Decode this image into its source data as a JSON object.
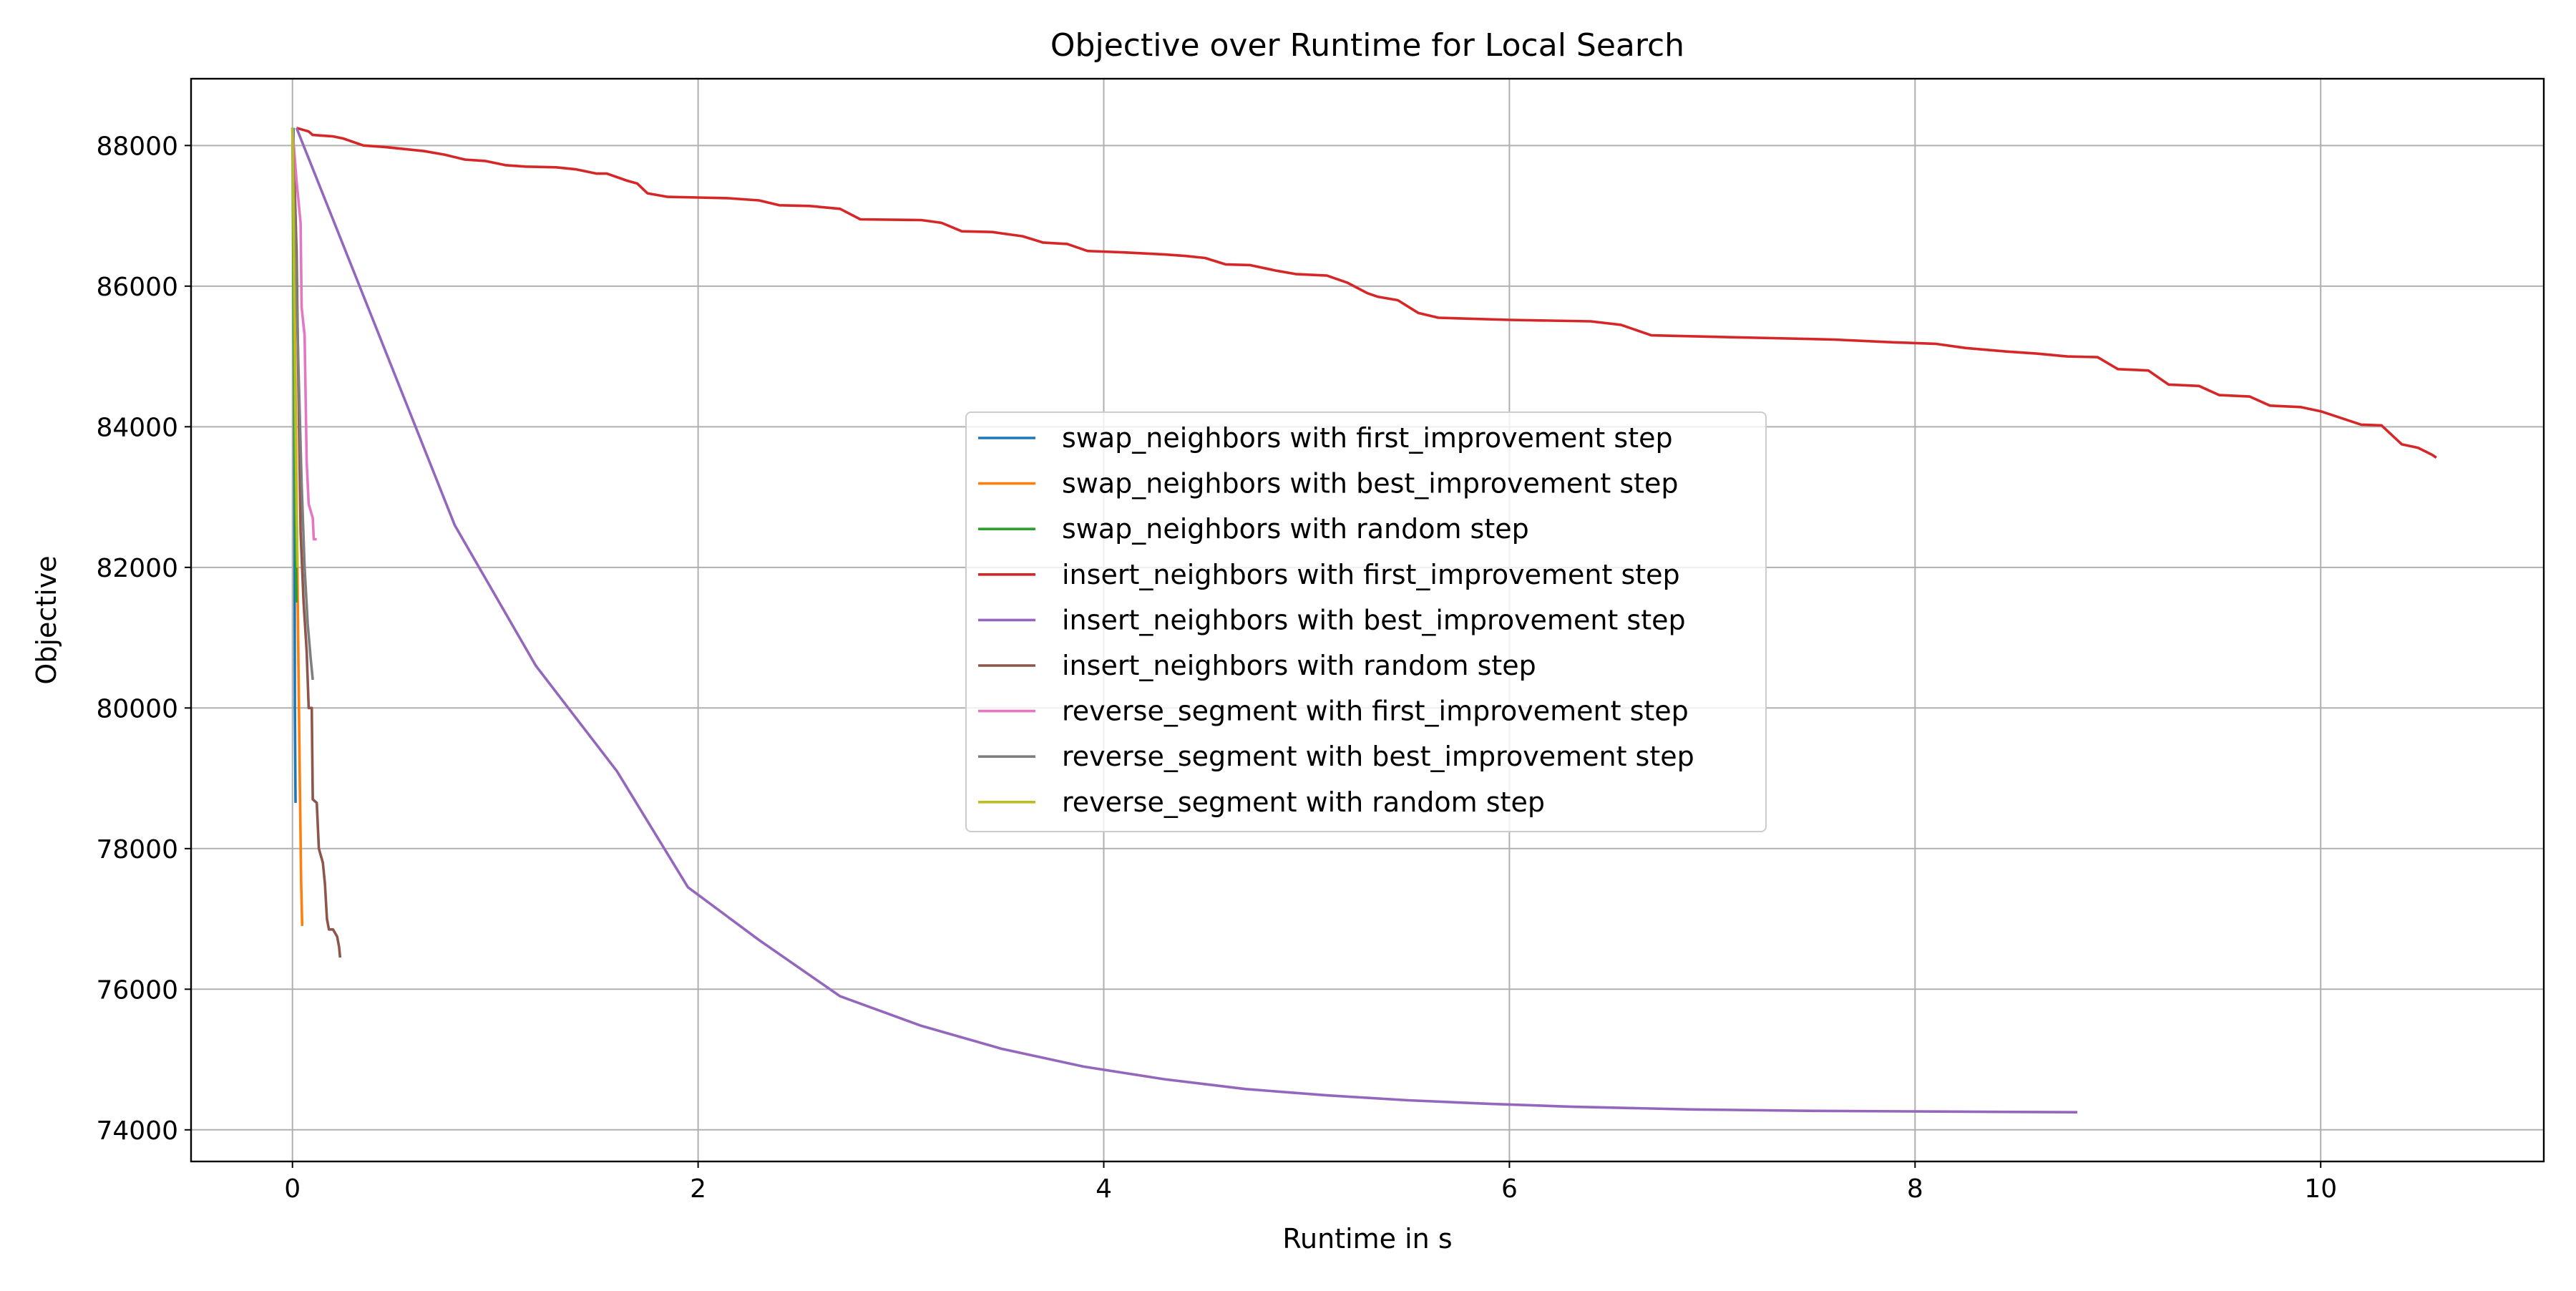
{
  "chart_data": {
    "type": "line",
    "title": "Objective over Runtime for Local Search",
    "xlabel": "Runtime in s",
    "ylabel": "Objective",
    "xlim": [
      -0.5,
      11.1
    ],
    "ylim": [
      73550,
      88950
    ],
    "xticks": [
      0,
      2,
      4,
      6,
      8,
      10
    ],
    "yticks": [
      74000,
      76000,
      78000,
      80000,
      82000,
      84000,
      86000,
      88000
    ],
    "grid": true,
    "legend_position": "center",
    "series": [
      {
        "name": "swap_neighbors with first_improvement step",
        "color": "#1f77b4",
        "points": [
          [
            0.005,
            88250
          ],
          [
            0.008,
            85500
          ],
          [
            0.01,
            82500
          ],
          [
            0.012,
            80000
          ],
          [
            0.015,
            78650
          ]
        ]
      },
      {
        "name": "swap_neighbors with best_improvement step",
        "color": "#ff7f0e",
        "points": [
          [
            0.0,
            88250
          ],
          [
            0.008,
            86500
          ],
          [
            0.015,
            84500
          ],
          [
            0.022,
            82500
          ],
          [
            0.03,
            80500
          ],
          [
            0.037,
            78800
          ],
          [
            0.043,
            77500
          ],
          [
            0.048,
            76900
          ]
        ]
      },
      {
        "name": "swap_neighbors with random step",
        "color": "#2ca02c",
        "points": [
          [
            0.0,
            88250
          ],
          [
            0.005,
            86000
          ],
          [
            0.01,
            84000
          ],
          [
            0.015,
            82500
          ],
          [
            0.02,
            81500
          ]
        ]
      },
      {
        "name": "insert_neighbors with first_improvement step",
        "color": "#d62728",
        "points": [
          [
            0.02,
            88250
          ],
          [
            0.08,
            88200
          ],
          [
            0.1,
            88150
          ],
          [
            0.2,
            88130
          ],
          [
            0.25,
            88100
          ],
          [
            0.3,
            88050
          ],
          [
            0.35,
            88000
          ],
          [
            0.45,
            87980
          ],
          [
            0.55,
            87950
          ],
          [
            0.65,
            87920
          ],
          [
            0.75,
            87870
          ],
          [
            0.85,
            87800
          ],
          [
            0.95,
            87780
          ],
          [
            1.05,
            87720
          ],
          [
            1.15,
            87700
          ],
          [
            1.3,
            87690
          ],
          [
            1.4,
            87660
          ],
          [
            1.5,
            87600
          ],
          [
            1.55,
            87600
          ],
          [
            1.65,
            87500
          ],
          [
            1.7,
            87460
          ],
          [
            1.75,
            87320
          ],
          [
            1.85,
            87270
          ],
          [
            2.0,
            87260
          ],
          [
            2.15,
            87250
          ],
          [
            2.3,
            87220
          ],
          [
            2.4,
            87150
          ],
          [
            2.55,
            87140
          ],
          [
            2.7,
            87100
          ],
          [
            2.8,
            86950
          ],
          [
            3.1,
            86940
          ],
          [
            3.2,
            86900
          ],
          [
            3.3,
            86780
          ],
          [
            3.45,
            86770
          ],
          [
            3.6,
            86710
          ],
          [
            3.7,
            86620
          ],
          [
            3.82,
            86600
          ],
          [
            3.92,
            86500
          ],
          [
            4.1,
            86480
          ],
          [
            4.3,
            86450
          ],
          [
            4.4,
            86430
          ],
          [
            4.5,
            86400
          ],
          [
            4.6,
            86310
          ],
          [
            4.72,
            86300
          ],
          [
            4.85,
            86220
          ],
          [
            4.95,
            86170
          ],
          [
            5.1,
            86150
          ],
          [
            5.2,
            86050
          ],
          [
            5.3,
            85900
          ],
          [
            5.35,
            85850
          ],
          [
            5.45,
            85800
          ],
          [
            5.55,
            85620
          ],
          [
            5.65,
            85550
          ],
          [
            6.0,
            85520
          ],
          [
            6.4,
            85500
          ],
          [
            6.55,
            85450
          ],
          [
            6.7,
            85300
          ],
          [
            7.0,
            85280
          ],
          [
            7.3,
            85260
          ],
          [
            7.6,
            85240
          ],
          [
            7.9,
            85200
          ],
          [
            8.1,
            85180
          ],
          [
            8.25,
            85120
          ],
          [
            8.45,
            85070
          ],
          [
            8.6,
            85040
          ],
          [
            8.75,
            85000
          ],
          [
            8.9,
            84990
          ],
          [
            9.0,
            84820
          ],
          [
            9.15,
            84800
          ],
          [
            9.25,
            84600
          ],
          [
            9.4,
            84580
          ],
          [
            9.5,
            84450
          ],
          [
            9.65,
            84430
          ],
          [
            9.75,
            84300
          ],
          [
            9.9,
            84280
          ],
          [
            10.0,
            84220
          ],
          [
            10.2,
            84030
          ],
          [
            10.3,
            84020
          ],
          [
            10.4,
            83750
          ],
          [
            10.48,
            83700
          ],
          [
            10.55,
            83600
          ],
          [
            10.57,
            83560
          ]
        ]
      },
      {
        "name": "insert_neighbors with best_improvement step",
        "color": "#9467bd",
        "points": [
          [
            0.02,
            88250
          ],
          [
            0.4,
            85500
          ],
          [
            0.8,
            82600
          ],
          [
            1.2,
            80600
          ],
          [
            1.6,
            79100
          ],
          [
            1.95,
            77450
          ],
          [
            2.3,
            76700
          ],
          [
            2.7,
            75900
          ],
          [
            3.1,
            75480
          ],
          [
            3.5,
            75150
          ],
          [
            3.9,
            74900
          ],
          [
            4.3,
            74720
          ],
          [
            4.7,
            74580
          ],
          [
            5.1,
            74490
          ],
          [
            5.5,
            74420
          ],
          [
            5.9,
            74370
          ],
          [
            6.3,
            74330
          ],
          [
            6.9,
            74290
          ],
          [
            7.5,
            74270
          ],
          [
            8.1,
            74260
          ],
          [
            8.8,
            74250
          ]
        ]
      },
      {
        "name": "insert_neighbors with random step",
        "color": "#8c564b",
        "points": [
          [
            0.0,
            88250
          ],
          [
            0.01,
            87500
          ],
          [
            0.02,
            86500
          ],
          [
            0.03,
            84500
          ],
          [
            0.04,
            82500
          ],
          [
            0.055,
            81500
          ],
          [
            0.07,
            80800
          ],
          [
            0.08,
            80000
          ],
          [
            0.095,
            80000
          ],
          [
            0.1,
            78700
          ],
          [
            0.12,
            78650
          ],
          [
            0.13,
            78000
          ],
          [
            0.15,
            77800
          ],
          [
            0.16,
            77500
          ],
          [
            0.17,
            77000
          ],
          [
            0.18,
            76850
          ],
          [
            0.2,
            76850
          ],
          [
            0.22,
            76750
          ],
          [
            0.23,
            76600
          ],
          [
            0.235,
            76450
          ]
        ]
      },
      {
        "name": "reverse_segment with first_improvement step",
        "color": "#e377c2",
        "points": [
          [
            0.0,
            88250
          ],
          [
            0.02,
            87500
          ],
          [
            0.04,
            86900
          ],
          [
            0.045,
            85700
          ],
          [
            0.06,
            85300
          ],
          [
            0.07,
            83500
          ],
          [
            0.08,
            82900
          ],
          [
            0.1,
            82700
          ],
          [
            0.105,
            82400
          ],
          [
            0.12,
            82400
          ]
        ]
      },
      {
        "name": "reverse_segment with best_improvement step",
        "color": "#7f7f7f",
        "points": [
          [
            0.0,
            88250
          ],
          [
            0.015,
            86500
          ],
          [
            0.03,
            84800
          ],
          [
            0.045,
            83200
          ],
          [
            0.06,
            82000
          ],
          [
            0.075,
            81200
          ],
          [
            0.09,
            80700
          ],
          [
            0.1,
            80400
          ]
        ]
      },
      {
        "name": "reverse_segment with random step",
        "color": "#bcbd22",
        "points": [
          [
            0.0,
            88250
          ],
          [
            0.005,
            87000
          ],
          [
            0.01,
            85500
          ],
          [
            0.015,
            84000
          ],
          [
            0.02,
            82800
          ],
          [
            0.025,
            82000
          ]
        ]
      }
    ]
  }
}
